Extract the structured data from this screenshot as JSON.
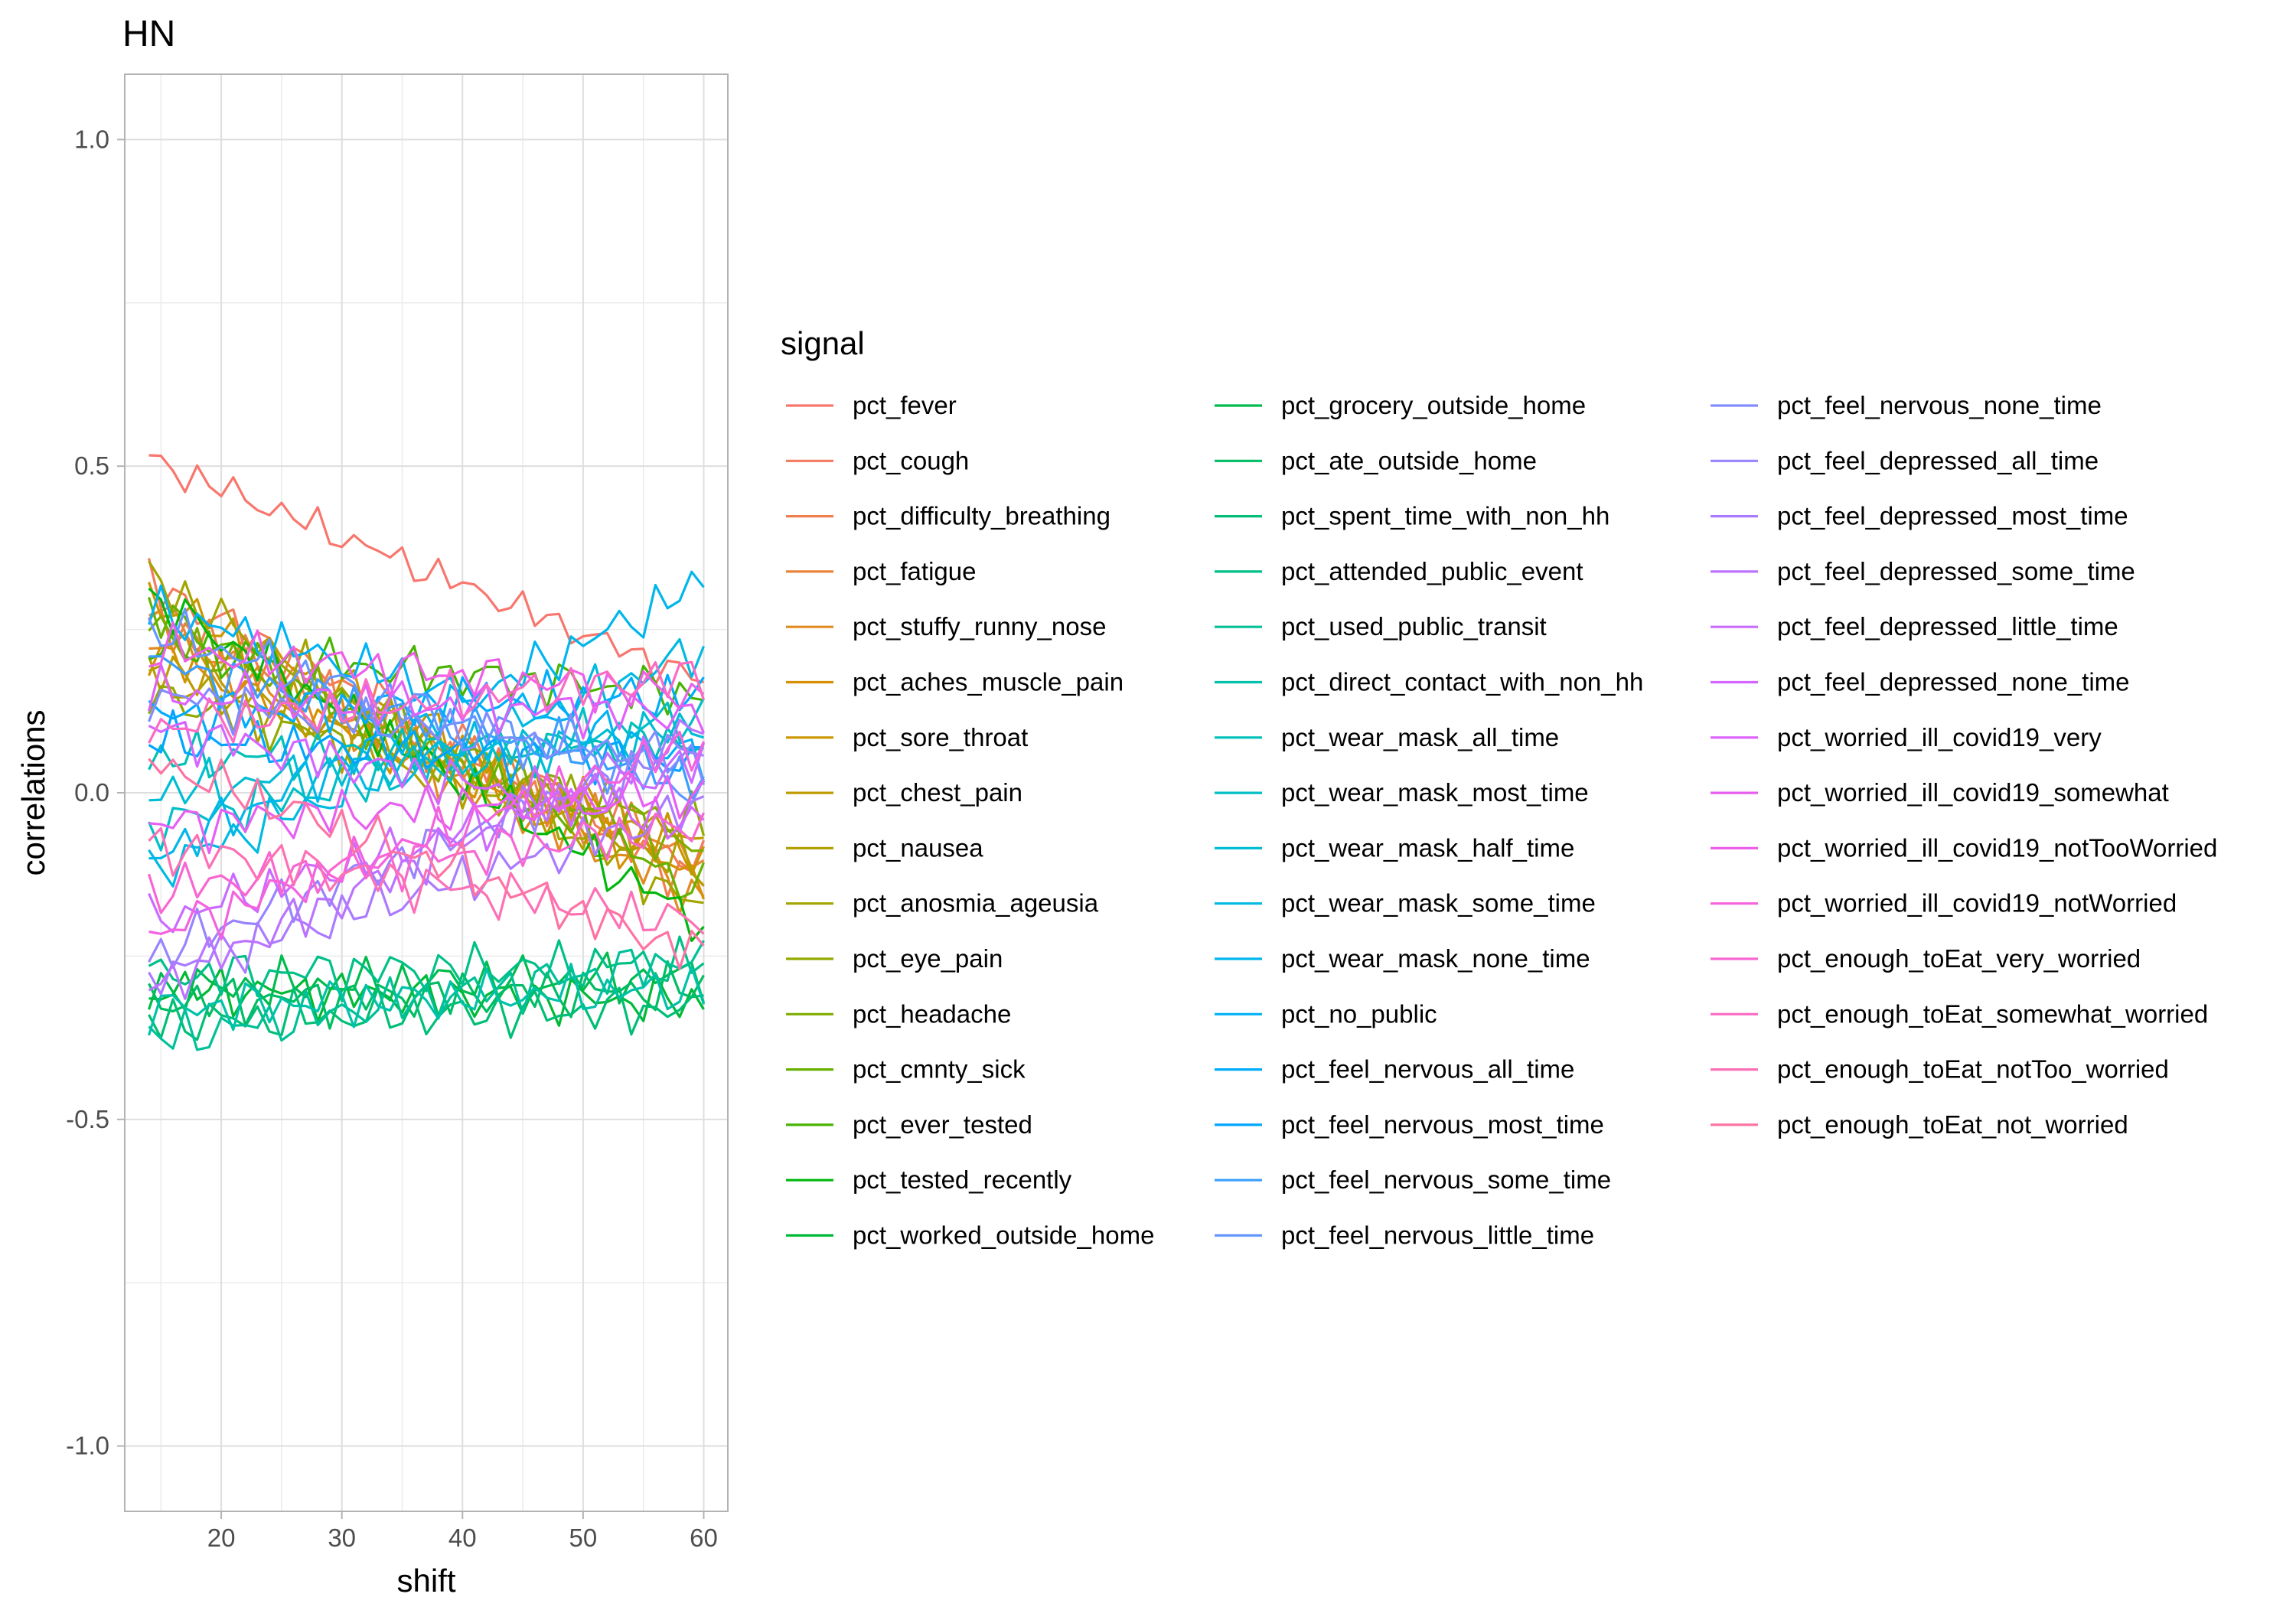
{
  "chart_data": {
    "type": "line",
    "title": "HN",
    "xlabel": "shift",
    "ylabel": "correlations",
    "xlim": [
      12,
      62
    ],
    "ylim": [
      -1.1,
      1.1
    ],
    "x_ticks": [
      20,
      30,
      40,
      50,
      60
    ],
    "x_tick_labels": [
      "20",
      "30",
      "40",
      "50",
      "60"
    ],
    "y_ticks": [
      -1.0,
      -0.5,
      0.0,
      0.5,
      1.0
    ],
    "y_tick_labels": [
      "-1.0",
      "-0.5",
      "0.0",
      "0.5",
      "1.0"
    ],
    "grid": true,
    "legend_title": "signal",
    "legend_position": "right",
    "x": [
      14,
      15,
      16,
      17,
      18,
      19,
      20,
      21,
      22,
      23,
      24,
      25,
      26,
      27,
      28,
      29,
      30,
      31,
      32,
      33,
      34,
      35,
      36,
      37,
      38,
      39,
      40,
      41,
      42,
      43,
      44,
      45,
      46,
      47,
      48,
      49,
      50,
      51,
      52,
      53,
      54,
      55,
      56,
      57,
      58,
      59,
      60
    ],
    "series": [
      {
        "name": "pct_fever",
        "color": "#F8766D",
        "start": 0.51,
        "end": 0.17,
        "amp": 0.025
      },
      {
        "name": "pct_cough",
        "color": "#F47A5F",
        "start": 0.32,
        "end": -0.12,
        "amp": 0.035
      },
      {
        "name": "pct_difficulty_breathing",
        "color": "#EF7F4F",
        "start": 0.28,
        "end": -0.14,
        "amp": 0.035
      },
      {
        "name": "pct_fatigue",
        "color": "#E8853A",
        "start": 0.26,
        "end": -0.1,
        "amp": 0.035
      },
      {
        "name": "pct_stuffy_runny_nose",
        "color": "#E08B1F",
        "start": 0.24,
        "end": -0.16,
        "amp": 0.035
      },
      {
        "name": "pct_aches_muscle_pain",
        "color": "#D69100",
        "start": 0.22,
        "end": -0.13,
        "amp": 0.035
      },
      {
        "name": "pct_sore_throat",
        "color": "#CB9600",
        "start": 0.3,
        "end": -0.1,
        "amp": 0.035
      },
      {
        "name": "pct_chest_pain",
        "color": "#BF9B00",
        "start": 0.2,
        "end": -0.08,
        "amp": 0.035
      },
      {
        "name": "pct_nausea",
        "color": "#B2A000",
        "start": 0.18,
        "end": -0.12,
        "amp": 0.035
      },
      {
        "name": "pct_anosmia_ageusia",
        "color": "#A3A500",
        "start": 0.33,
        "end": -0.18,
        "amp": 0.035
      },
      {
        "name": "pct_eye_pain",
        "color": "#92A900",
        "start": 0.15,
        "end": -0.05,
        "amp": 0.035
      },
      {
        "name": "pct_headache",
        "color": "#7EAD00",
        "start": 0.25,
        "end": -0.09,
        "amp": 0.035
      },
      {
        "name": "pct_cmnty_sick",
        "color": "#67B100",
        "start": 0.28,
        "end": -0.15,
        "amp": 0.035
      },
      {
        "name": "pct_ever_tested",
        "color": "#47B400",
        "start": 0.22,
        "end": 0.15,
        "amp": 0.035
      },
      {
        "name": "pct_tested_recently",
        "color": "#00B70C",
        "start": 0.3,
        "end": -0.2,
        "amp": 0.035
      },
      {
        "name": "pct_worked_outside_home",
        "color": "#00B936",
        "start": -0.3,
        "end": -0.32,
        "amp": 0.035
      },
      {
        "name": "pct_grocery_outside_home",
        "color": "#00BB4E",
        "start": -0.3,
        "end": -0.28,
        "amp": 0.035
      },
      {
        "name": "pct_ate_outside_home",
        "color": "#00BD63",
        "start": -0.32,
        "end": -0.3,
        "amp": 0.035
      },
      {
        "name": "pct_spent_time_with_non_hh",
        "color": "#00BE76",
        "start": -0.35,
        "end": -0.33,
        "amp": 0.035
      },
      {
        "name": "pct_attended_public_event",
        "color": "#00C087",
        "start": -0.28,
        "end": -0.26,
        "amp": 0.035
      },
      {
        "name": "pct_used_public_transit",
        "color": "#00C098",
        "start": -0.38,
        "end": -0.25,
        "amp": 0.035
      },
      {
        "name": "pct_direct_contact_with_non_hh",
        "color": "#00C1A9",
        "start": -0.33,
        "end": -0.3,
        "amp": 0.035
      },
      {
        "name": "pct_wear_mask_all_time",
        "color": "#00C0B8",
        "start": 0.05,
        "end": 0.08,
        "amp": 0.035
      },
      {
        "name": "pct_wear_mask_most_time",
        "color": "#00BFC6",
        "start": -0.05,
        "end": 0.12,
        "amp": 0.035
      },
      {
        "name": "pct_wear_mask_half_time",
        "color": "#00BDD4",
        "start": 0.0,
        "end": 0.1,
        "amp": 0.035
      },
      {
        "name": "pct_wear_mask_some_time",
        "color": "#00BAE1",
        "start": -0.12,
        "end": 0.22,
        "amp": 0.035
      },
      {
        "name": "pct_wear_mask_none_time",
        "color": "#00B6EC",
        "start": -0.1,
        "end": 0.32,
        "amp": 0.035
      },
      {
        "name": "pct_no_public",
        "color": "#00B2F6",
        "start": 0.28,
        "end": 0.05,
        "amp": 0.035
      },
      {
        "name": "pct_feel_nervous_all_time",
        "color": "#00ACFC",
        "start": 0.12,
        "end": 0.15,
        "amp": 0.035
      },
      {
        "name": "pct_feel_nervous_most_time",
        "color": "#00A5FF",
        "start": 0.08,
        "end": 0.05,
        "amp": 0.035
      },
      {
        "name": "pct_feel_nervous_some_time",
        "color": "#399EFF",
        "start": 0.2,
        "end": 0.02,
        "amp": 0.035
      },
      {
        "name": "pct_feel_nervous_little_time",
        "color": "#6496FF",
        "start": 0.25,
        "end": 0.0,
        "amp": 0.035
      },
      {
        "name": "pct_feel_nervous_none_time",
        "color": "#818DFF",
        "start": 0.15,
        "end": 0.05,
        "amp": 0.035
      },
      {
        "name": "pct_feel_depressed_all_time",
        "color": "#9884FF",
        "start": -0.25,
        "end": 0.08,
        "amp": 0.035
      },
      {
        "name": "pct_feel_depressed_most_time",
        "color": "#AB7BFF",
        "start": -0.28,
        "end": -0.02,
        "amp": 0.035
      },
      {
        "name": "pct_feel_depressed_some_time",
        "color": "#BB73FF",
        "start": -0.3,
        "end": 0.1,
        "amp": 0.035
      },
      {
        "name": "pct_feel_depressed_little_time",
        "color": "#C96BFF",
        "start": -0.2,
        "end": 0.05,
        "amp": 0.035
      },
      {
        "name": "pct_feel_depressed_none_time",
        "color": "#D565FF",
        "start": 0.1,
        "end": -0.05,
        "amp": 0.035
      },
      {
        "name": "pct_worried_ill_covid19_very",
        "color": "#DF61FB",
        "start": 0.15,
        "end": 0.12,
        "amp": 0.035
      },
      {
        "name": "pct_worried_ill_covid19_somewhat",
        "color": "#E75FF2",
        "start": -0.05,
        "end": 0.0,
        "amp": 0.035
      },
      {
        "name": "pct_worried_ill_covid19_notTooWorried",
        "color": "#EE5FE9",
        "start": 0.22,
        "end": 0.15,
        "amp": 0.035
      },
      {
        "name": "pct_worried_ill_covid19_notWorried",
        "color": "#F462DE",
        "start": -0.22,
        "end": 0.08,
        "amp": 0.035
      },
      {
        "name": "pct_enough_toEat_very_worried",
        "color": "#F866D2",
        "start": -0.15,
        "end": -0.05,
        "amp": 0.035
      },
      {
        "name": "pct_enough_toEat_somewhat_worried",
        "color": "#FB6BC4",
        "start": 0.1,
        "end": 0.18,
        "amp": 0.035
      },
      {
        "name": "pct_enough_toEat_notToo_worried",
        "color": "#FD70B5",
        "start": -0.08,
        "end": -0.2,
        "amp": 0.035
      },
      {
        "name": "pct_enough_toEat_not_worried",
        "color": "#FD74A4",
        "start": 0.05,
        "end": -0.25,
        "amp": 0.035
      }
    ]
  }
}
